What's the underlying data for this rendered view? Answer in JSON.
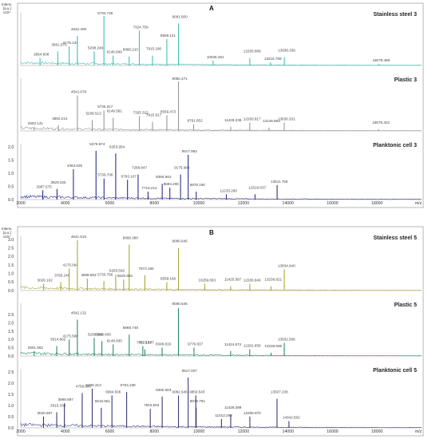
{
  "figure": {
    "panel_A_label": "A",
    "panel_B_label": "B",
    "y_unit_line1": "Intens.",
    "y_unit_line2": "[a.u.]",
    "y_unit_line3": "x10⁴",
    "x_unit": "m/z"
  },
  "chart_data": [
    {
      "type": "line",
      "title": "Stainless steel 3",
      "color": "#3fc1b2",
      "ylim": [
        0,
        3
      ],
      "xlim": [
        2000,
        20000
      ],
      "peaks": [
        [
          2864.608,
          0.45
        ],
        [
          3661.975,
          0.85
        ],
        [
          4175.133,
          1.15
        ],
        [
          4542.4,
          1.8
        ],
        [
          5298.249,
          0.85
        ],
        [
          5734.726,
          3.0
        ],
        [
          6146.849,
          0.6
        ],
        [
          6868.21,
          0.55
        ],
        [
          7324.759,
          2.1
        ],
        [
          7915.18,
          0.6
        ],
        [
          8559.141,
          1.6
        ],
        [
          9081.6,
          2.55
        ],
        [
          10635.281,
          0.3
        ],
        [
          12283.889,
          0.45
        ],
        [
          13216.789,
          0.2
        ],
        [
          13836.336,
          0.5
        ],
        [
          18079.489,
          0.1
        ]
      ]
    },
    {
      "type": "line",
      "title": "Plastic 3",
      "color": "#999999",
      "ylim": [
        0,
        6
      ],
      "xlim": [
        2000,
        20000
      ],
      "peaks": [
        [
          2602.141,
          0.5
        ],
        [
          3692.214,
          0.7
        ],
        [
          4542.679,
          4.3
        ],
        [
          5208.513,
          1.3
        ],
        [
          5735.317,
          2.5
        ],
        [
          6149.581,
          1.6
        ],
        [
          7325.322,
          1.8
        ],
        [
          7915.817,
          1.1
        ],
        [
          8559.473,
          1.9
        ],
        [
          9082.471,
          6.2
        ],
        [
          9761.852,
          0.8
        ],
        [
          11428.238,
          0.5
        ],
        [
          12283.817,
          1.0
        ],
        [
          13149.863,
          0.4
        ],
        [
          13830.331,
          1.0
        ],
        [
          18075.322,
          0.2
        ]
      ]
    },
    {
      "type": "line",
      "title": "Planktonic cell 3",
      "color": "#2a2f8a",
      "ylim": [
        0,
        2
      ],
      "xlim": [
        2000,
        20000
      ],
      "ytick_labels": [
        "0.0",
        "0.5",
        "1.0",
        "1.5",
        "2.0"
      ],
      "peaks": [
        [
          2987.575,
          0.35
        ],
        [
          3629.325,
          0.4
        ],
        [
          4363.835,
          1.15
        ],
        [
          5379.674,
          1.85
        ],
        [
          5739.706,
          0.8
        ],
        [
          6263.954,
          1.75
        ],
        [
          6793.107,
          0.75
        ],
        [
          7268.847,
          0.95
        ],
        [
          7716.212,
          0.3
        ],
        [
          8350.944,
          0.6
        ],
        [
          8694.206,
          0.45
        ],
        [
          9175.984,
          0.95
        ],
        [
          9517.992,
          1.7
        ],
        [
          9878.19,
          0.3
        ],
        [
          11233.28,
          0.2
        ],
        [
          12519.037,
          0.2
        ],
        [
          13511.756,
          0.55
        ]
      ]
    },
    {
      "type": "line",
      "title": "Stainless steel 5",
      "color": "#a9a935",
      "ylim": [
        0,
        3
      ],
      "xlim": [
        2000,
        20000
      ],
      "ytick_labels": [
        "0.0",
        "0.5",
        "1.0",
        "1.5",
        "2.0",
        "2.5",
        "3.0"
      ],
      "peaks": [
        [
          3026.162,
          0.4
        ],
        [
          3795.246,
          0.5
        ],
        [
          4175.064,
          1.3
        ],
        [
          4541.515,
          2.95
        ],
        [
          4989.863,
          0.7
        ],
        [
          5733.766,
          0.55
        ],
        [
          6263.592,
          0.95
        ],
        [
          6868.38,
          2.7
        ],
        [
          6620.802,
          0.65
        ],
        [
          7573.18,
          0.9
        ],
        [
          8559.166,
          0.5
        ],
        [
          9080.646,
          2.5
        ],
        [
          10259.063,
          0.4
        ],
        [
          11425.587,
          0.25
        ],
        [
          12283.846,
          0.4
        ],
        [
          13236.821,
          0.25
        ],
        [
          13834.64,
          1.25
        ]
      ]
    },
    {
      "type": "line",
      "title": "Plastic 5",
      "color": "#2a8a6a",
      "ylim": [
        0,
        3
      ],
      "xlim": [
        2000,
        20000
      ],
      "ytick_labels": [
        "0.0",
        "0.5",
        "1.0",
        "1.5",
        "2.0",
        "2.5"
      ],
      "peaks": [
        [
          2601.582,
          0.3
        ],
        [
          3614.862,
          0.6
        ],
        [
          4175.588,
          1.0
        ],
        [
          4542.132,
          2.2
        ],
        [
          5298.38,
          1.1
        ],
        [
          5643.409,
          0.9
        ],
        [
          6148.83,
          0.7
        ],
        [
          6868.748,
          1.3
        ],
        [
          7481.18,
          0.6
        ],
        [
          7573.877,
          0.4
        ],
        [
          8348.819,
          0.5
        ],
        [
          9080.646,
          2.9
        ],
        [
          9779.837,
          0.5
        ],
        [
          11424.874,
          0.3
        ],
        [
          12281.856,
          0.4
        ],
        [
          13236.596,
          0.2
        ],
        [
          13832.566,
          0.8
        ]
      ]
    },
    {
      "type": "line",
      "title": "Planktonic cell 5",
      "color": "#3a3a7a",
      "ylim": [
        0,
        2.5
      ],
      "xlim": [
        2000,
        20000
      ],
      "ytick_labels": [
        "0.0",
        "0.5",
        "1.0",
        "1.5",
        "2.0",
        "2.5"
      ],
      "x_tick_labels": [
        "2000",
        "4000",
        "6000",
        "8000",
        "10000",
        "12000",
        "14000",
        "16000",
        "18000",
        "m/z"
      ],
      "peaks": [
        [
          3020.697,
          0.5
        ],
        [
          3615.336,
          0.7
        ],
        [
          3958.587,
          1.1
        ],
        [
          4758.645,
          1.55
        ],
        [
          5208.313,
          1.75
        ],
        [
          5616.561,
          0.9
        ],
        [
          6094.506,
          1.45
        ],
        [
          6754.238,
          1.6
        ],
        [
          7815.563,
          0.85
        ],
        [
          8350.563,
          1.4
        ],
        [
          9082.646,
          1.45
        ],
        [
          9517.007,
          2.25
        ],
        [
          9859.543,
          1.45
        ],
        [
          9878.781,
          0.9
        ],
        [
          11012.298,
          0.4
        ],
        [
          11428.389,
          0.6
        ],
        [
          12286.97,
          0.5
        ],
        [
          13507.238,
          1.3
        ],
        [
          14042.562,
          0.3
        ]
      ]
    }
  ]
}
